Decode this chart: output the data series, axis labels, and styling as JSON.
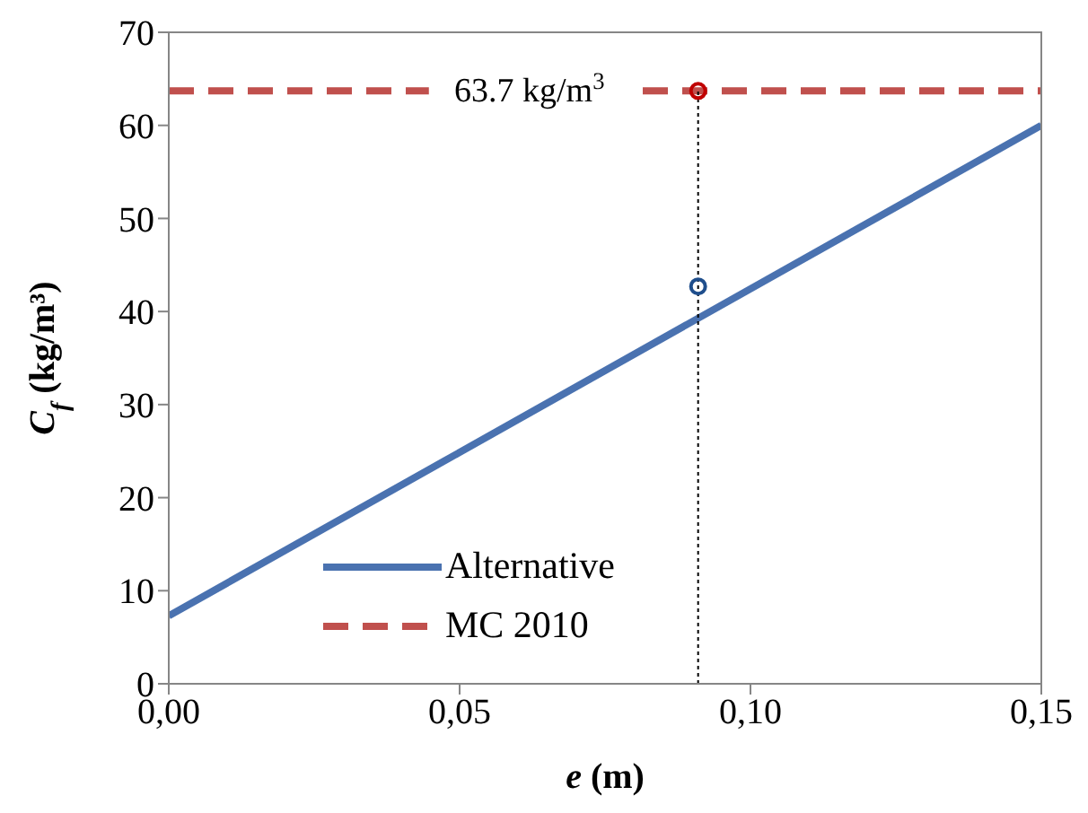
{
  "chart_data": {
    "type": "line",
    "xlabel": "e (m)",
    "ylabel": "C$_{f}$ (kg/m³)",
    "xlim": [
      0,
      0.15
    ],
    "xticks": [
      {
        "value": 0,
        "label": "0,00"
      },
      {
        "value": 0.05,
        "label": "0,05"
      },
      {
        "value": 0.1,
        "label": "0,10"
      },
      {
        "value": 0.15,
        "label": "0,15"
      }
    ],
    "ylim": [
      0,
      70
    ],
    "yticks": [
      0,
      10,
      20,
      30,
      40,
      50,
      60,
      70
    ],
    "series": [
      {
        "name": "Alternative",
        "color": "#4a72b0",
        "x": [
          0,
          0.15
        ],
        "values": [
          7.3,
          60
        ],
        "line_style": "solid",
        "marker": "none"
      },
      {
        "name": "MC 2010",
        "color": "#c0504d",
        "x": [
          0,
          0.15
        ],
        "values": [
          63.7,
          63.7
        ],
        "line_style": "dashed",
        "marker": "none"
      },
      {
        "type": "line",
        "color": "#000000",
        "x": [
          0.091,
          0.091
        ],
        "values": [
          0,
          63.7
        ],
        "line_style": "dotted",
        "marker": "none"
      },
      {
        "type": "scatter",
        "color": "#1f4e8c",
        "x": [
          0.091
        ],
        "values": [
          42.7
        ],
        "marker": "circle"
      },
      {
        "type": "scatter",
        "color": "#c00000",
        "x": [
          0.091
        ],
        "values": [
          63.7
        ],
        "marker": "circle"
      }
    ],
    "annotations": [
      {
        "text": "63.7 kg/m$^{3}$",
        "x": 0.062,
        "y": 63.7
      }
    ],
    "legend": "bottom left"
  }
}
